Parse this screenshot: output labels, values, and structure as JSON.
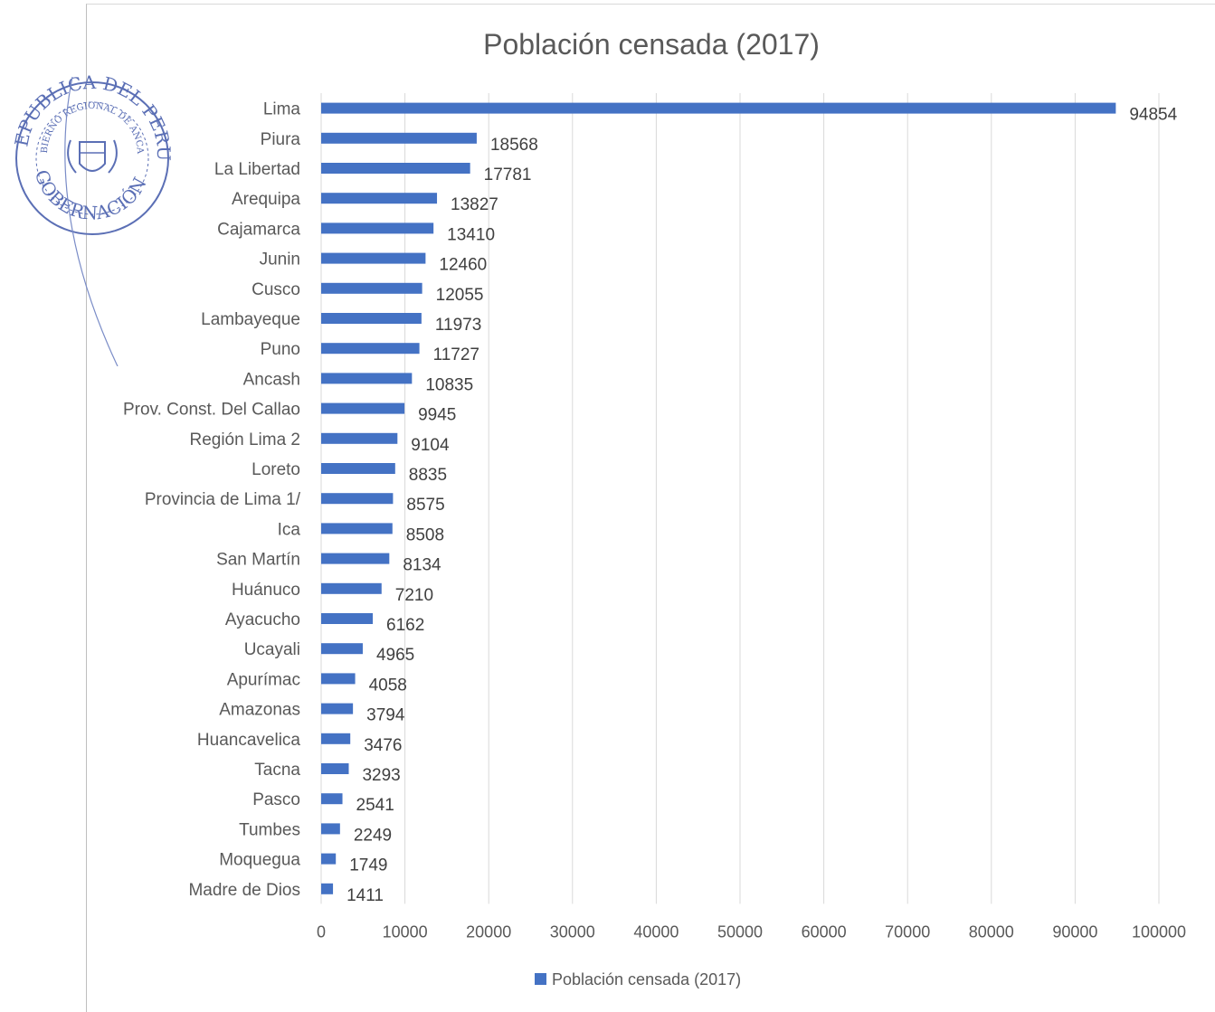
{
  "chart_data": {
    "type": "bar",
    "orientation": "horizontal",
    "title": "Población censada (2017)",
    "categories": [
      "Lima",
      "Piura",
      "La Libertad",
      "Arequipa",
      "Cajamarca",
      "Junin",
      "Cusco",
      "Lambayeque",
      "Puno",
      "Ancash",
      "Prov. Const. Del Callao",
      "Región Lima 2",
      "Loreto",
      "Provincia de Lima 1/",
      "Ica",
      "San Martín",
      "Huánuco",
      "Ayacucho",
      "Ucayali",
      "Apurímac",
      "Amazonas",
      "Huancavelica",
      "Tacna",
      "Pasco",
      "Tumbes",
      "Moquegua",
      "Madre de Dios"
    ],
    "series": [
      {
        "name": "Población censada (2017)",
        "values": [
          94854,
          18568,
          17781,
          13827,
          13410,
          12460,
          12055,
          11973,
          11727,
          10835,
          9945,
          9104,
          8835,
          8575,
          8508,
          8134,
          7210,
          6162,
          4965,
          4058,
          3794,
          3476,
          3293,
          2541,
          2249,
          1749,
          1411
        ]
      }
    ],
    "xlim": [
      0,
      100000
    ],
    "xticks": [
      "0",
      "10000",
      "20000",
      "30000",
      "40000",
      "50000",
      "60000",
      "70000",
      "80000",
      "90000",
      "100000"
    ],
    "grid": "vertical",
    "legend": "bottom",
    "bar_color": "#4472c4"
  },
  "seal": {
    "text_outer": "REPUBLICA DEL PERU",
    "text_inner": "GOBIERNO REGIONAL DE ANCASH",
    "text_bottom": "GOBERNACIÓN",
    "color": "#5b6fb5"
  }
}
